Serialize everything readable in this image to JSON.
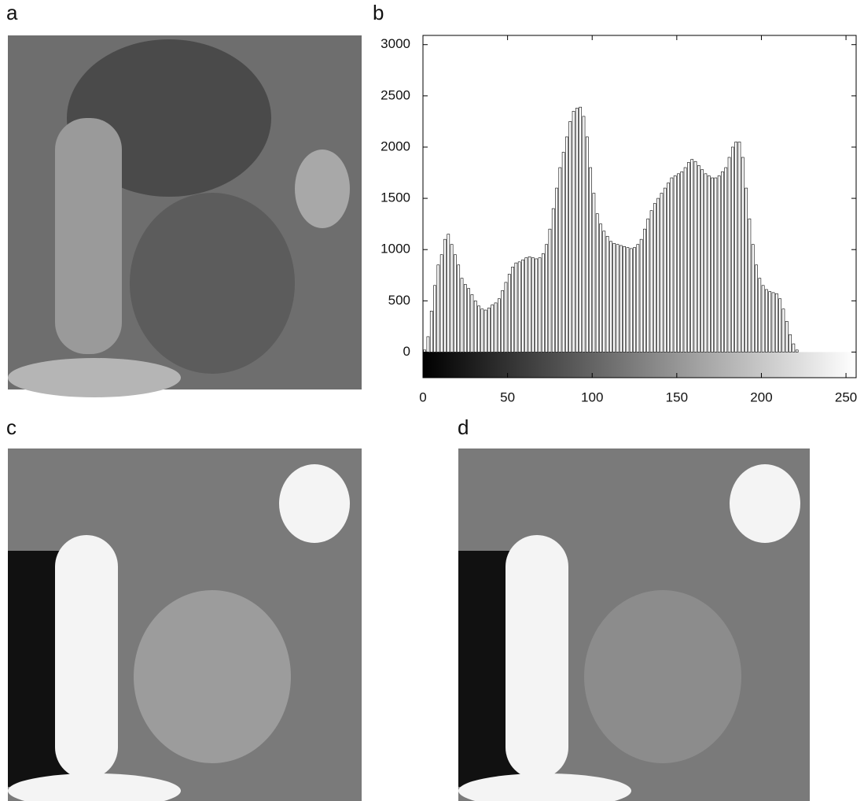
{
  "panels": [
    "a",
    "b",
    "c",
    "d"
  ],
  "chart_data": {
    "type": "histogram",
    "bins": [
      0,
      2,
      4,
      6,
      8,
      10,
      12,
      14,
      16,
      18,
      20,
      22,
      24,
      26,
      28,
      30,
      32,
      34,
      36,
      38,
      40,
      42,
      44,
      46,
      48,
      50,
      52,
      54,
      56,
      58,
      60,
      62,
      64,
      66,
      68,
      70,
      72,
      74,
      76,
      78,
      80,
      82,
      84,
      86,
      88,
      90,
      92,
      94,
      96,
      98,
      100,
      102,
      104,
      106,
      108,
      110,
      112,
      114,
      116,
      118,
      120,
      122,
      124,
      126,
      128,
      130,
      132,
      134,
      136,
      138,
      140,
      142,
      144,
      146,
      148,
      150,
      152,
      154,
      156,
      158,
      160,
      162,
      164,
      166,
      168,
      170,
      172,
      174,
      176,
      178,
      180,
      182,
      184,
      186,
      188,
      190,
      192,
      194,
      196,
      198,
      200,
      202,
      204,
      206,
      208,
      210,
      212,
      214,
      216,
      218,
      220,
      222,
      224,
      226,
      228,
      230,
      232,
      234,
      236,
      238,
      240,
      242,
      244,
      246,
      248,
      250,
      252,
      254,
      256
    ],
    "values": [
      20,
      150,
      400,
      650,
      850,
      950,
      1100,
      1150,
      1050,
      950,
      850,
      720,
      660,
      620,
      560,
      500,
      450,
      420,
      410,
      430,
      460,
      480,
      520,
      600,
      680,
      760,
      830,
      870,
      880,
      900,
      920,
      930,
      920,
      910,
      920,
      960,
      1050,
      1200,
      1400,
      1600,
      1800,
      1950,
      2100,
      2250,
      2350,
      2380,
      2390,
      2300,
      2100,
      1800,
      1550,
      1350,
      1250,
      1180,
      1130,
      1080,
      1060,
      1050,
      1040,
      1030,
      1020,
      1010,
      1020,
      1050,
      1100,
      1200,
      1300,
      1380,
      1450,
      1500,
      1550,
      1600,
      1650,
      1700,
      1720,
      1740,
      1760,
      1800,
      1850,
      1880,
      1860,
      1820,
      1780,
      1740,
      1720,
      1700,
      1700,
      1720,
      1760,
      1800,
      1900,
      2000,
      2050,
      2050,
      1900,
      1600,
      1300,
      1050,
      850,
      720,
      650,
      610,
      590,
      580,
      570,
      520,
      420,
      300,
      170,
      80,
      20,
      0,
      0,
      0,
      0,
      0,
      0,
      0,
      0,
      0,
      0,
      0,
      0,
      0,
      0,
      0,
      0,
      0
    ],
    "color": "#ffffff",
    "xlim": [
      0,
      256
    ],
    "xticks": [
      0,
      50,
      100,
      150,
      200,
      250
    ],
    "ylim": [
      -250,
      3090
    ],
    "yticks": [
      0,
      500,
      1000,
      1500,
      2000,
      2500,
      3000
    ]
  }
}
